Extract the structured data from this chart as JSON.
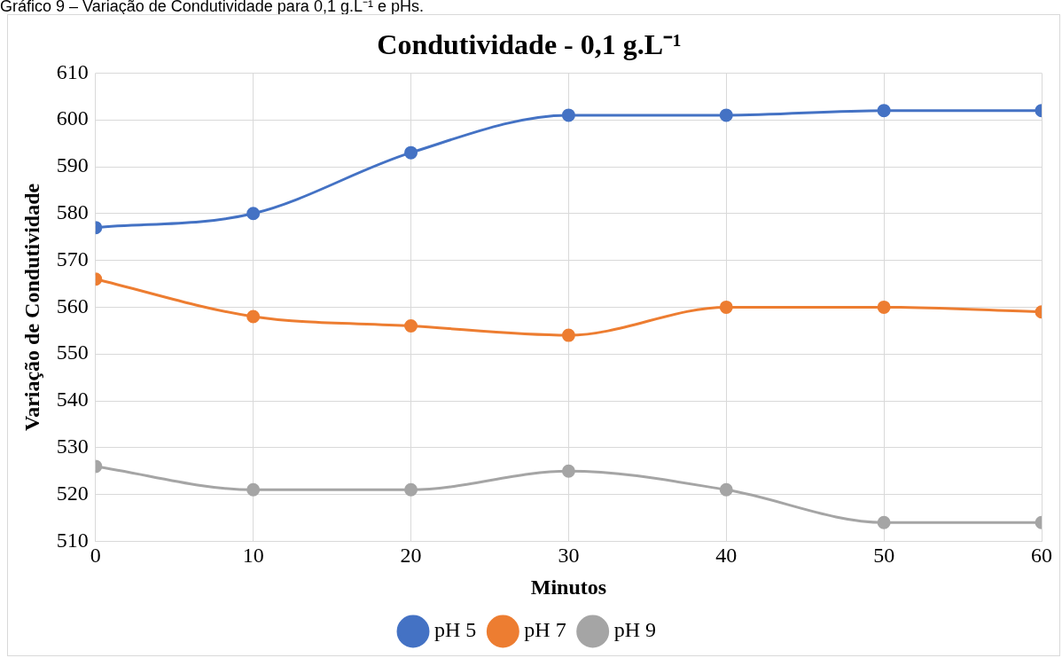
{
  "chart_data": {
    "type": "line",
    "title": "Condutividade - 0,1 g.L⁻¹",
    "annotations": [
      "Gráfico 9 – Variação de Condutividade para 0,1 g.L⁻¹ e pHs."
    ],
    "xlabel": "Minutos",
    "ylabel": "Variação de Condutividade",
    "x": [
      0,
      10,
      20,
      30,
      40,
      50,
      60
    ],
    "series": [
      {
        "name": "pH 5",
        "color": "#4472c4",
        "values": [
          577,
          580,
          593,
          601,
          601,
          602,
          602
        ]
      },
      {
        "name": "pH 7",
        "color": "#ed7d31",
        "values": [
          566,
          558,
          556,
          554,
          560,
          560,
          559
        ]
      },
      {
        "name": "pH 9",
        "color": "#a5a5a5",
        "values": [
          526,
          521,
          521,
          525,
          521,
          514,
          514
        ]
      }
    ],
    "xlim": [
      0,
      60
    ],
    "xticks": [
      0,
      10,
      20,
      30,
      40,
      50,
      60
    ],
    "ylim": [
      510,
      610
    ],
    "yticks": [
      510,
      520,
      530,
      540,
      550,
      560,
      570,
      580,
      590,
      600,
      610
    ],
    "grid": true,
    "legend": "bottom",
    "marker": "circle",
    "line_style": "solid"
  }
}
